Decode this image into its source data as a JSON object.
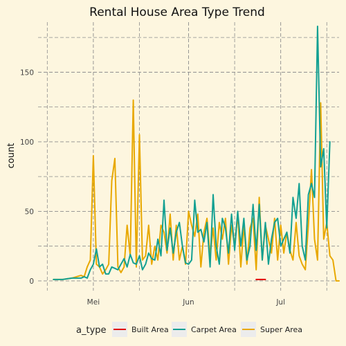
{
  "chart_data": {
    "type": "line",
    "title": "Rental House Area Type Trend",
    "xlabel": "",
    "ylabel": "count",
    "x_tick_labels": [
      "Mei",
      "Jun",
      "Jul"
    ],
    "y_ticks": [
      0,
      50,
      100,
      150
    ],
    "ylim": [
      -7,
      186
    ],
    "xlim": [
      "2022-04-13",
      "2022-07-20"
    ],
    "grid": true,
    "legend": {
      "title": "a_type",
      "position": "bottom"
    },
    "series": [
      {
        "name": "Built Area",
        "color": "#E00000",
        "x": [
          "2022-06-23",
          "2022-06-24",
          "2022-06-25",
          "2022-06-26"
        ],
        "y": [
          1,
          1,
          1,
          1
        ]
      },
      {
        "name": "Carpet Area",
        "color": "#12A092",
        "x": [
          "2022-04-18",
          "2022-04-21",
          "2022-04-24",
          "2022-04-27",
          "2022-04-28",
          "2022-04-29",
          "2022-04-30",
          "2022-05-01",
          "2022-05-02",
          "2022-05-03",
          "2022-05-04",
          "2022-05-05",
          "2022-05-06",
          "2022-05-07",
          "2022-05-08",
          "2022-05-09",
          "2022-05-10",
          "2022-05-11",
          "2022-05-12",
          "2022-05-13",
          "2022-05-14",
          "2022-05-15",
          "2022-05-16",
          "2022-05-17",
          "2022-05-18",
          "2022-05-19",
          "2022-05-20",
          "2022-05-21",
          "2022-05-22",
          "2022-05-23",
          "2022-05-24",
          "2022-05-25",
          "2022-05-26",
          "2022-05-27",
          "2022-05-28",
          "2022-05-29",
          "2022-05-30",
          "2022-05-31",
          "2022-06-01",
          "2022-06-02",
          "2022-06-03",
          "2022-06-04",
          "2022-06-05",
          "2022-06-06",
          "2022-06-07",
          "2022-06-08",
          "2022-06-09",
          "2022-06-10",
          "2022-06-11",
          "2022-06-12",
          "2022-06-13",
          "2022-06-14",
          "2022-06-15",
          "2022-06-16",
          "2022-06-17",
          "2022-06-18",
          "2022-06-19",
          "2022-06-20",
          "2022-06-21",
          "2022-06-22",
          "2022-06-23",
          "2022-06-24",
          "2022-06-25",
          "2022-06-26",
          "2022-06-27",
          "2022-06-28",
          "2022-06-29",
          "2022-06-30",
          "2022-07-01",
          "2022-07-02",
          "2022-07-03",
          "2022-07-04",
          "2022-07-05",
          "2022-07-06",
          "2022-07-07",
          "2022-07-08",
          "2022-07-09",
          "2022-07-10",
          "2022-07-11",
          "2022-07-12",
          "2022-07-13",
          "2022-07-14",
          "2022-07-15",
          "2022-07-16",
          "2022-07-17"
        ],
        "y": [
          1,
          1,
          2,
          2,
          3,
          2,
          8,
          12,
          23,
          10,
          12,
          5,
          5,
          10,
          9,
          8,
          12,
          16,
          10,
          19,
          13,
          12,
          18,
          8,
          12,
          20,
          16,
          15,
          30,
          18,
          58,
          22,
          38,
          20,
          35,
          42,
          25,
          13,
          12,
          15,
          58,
          35,
          37,
          28,
          42,
          10,
          62,
          25,
          12,
          45,
          38,
          20,
          48,
          22,
          50,
          25,
          45,
          15,
          25,
          55,
          22,
          55,
          15,
          42,
          12,
          30,
          42,
          45,
          25,
          30,
          35,
          20,
          60,
          45,
          70,
          25,
          15,
          62,
          70,
          60,
          183,
          82,
          95,
          38,
          100
        ]
      },
      {
        "name": "Super Area",
        "color": "#E8A800",
        "x": [
          "2022-04-18",
          "2022-04-21",
          "2022-04-24",
          "2022-04-27",
          "2022-04-28",
          "2022-04-29",
          "2022-04-30",
          "2022-05-01",
          "2022-05-02",
          "2022-05-03",
          "2022-05-04",
          "2022-05-05",
          "2022-05-06",
          "2022-05-07",
          "2022-05-08",
          "2022-05-09",
          "2022-05-10",
          "2022-05-11",
          "2022-05-12",
          "2022-05-13",
          "2022-05-14",
          "2022-05-15",
          "2022-05-16",
          "2022-05-17",
          "2022-05-18",
          "2022-05-19",
          "2022-05-20",
          "2022-05-21",
          "2022-05-22",
          "2022-05-23",
          "2022-05-24",
          "2022-05-25",
          "2022-05-26",
          "2022-05-27",
          "2022-05-28",
          "2022-05-29",
          "2022-05-30",
          "2022-05-31",
          "2022-06-01",
          "2022-06-02",
          "2022-06-03",
          "2022-06-04",
          "2022-06-05",
          "2022-06-06",
          "2022-06-07",
          "2022-06-08",
          "2022-06-09",
          "2022-06-10",
          "2022-06-11",
          "2022-06-12",
          "2022-06-13",
          "2022-06-14",
          "2022-06-15",
          "2022-06-16",
          "2022-06-17",
          "2022-06-18",
          "2022-06-19",
          "2022-06-20",
          "2022-06-21",
          "2022-06-22",
          "2022-06-23",
          "2022-06-24",
          "2022-06-25",
          "2022-06-26",
          "2022-06-27",
          "2022-06-28",
          "2022-06-29",
          "2022-06-30",
          "2022-07-01",
          "2022-07-02",
          "2022-07-03",
          "2022-07-04",
          "2022-07-05",
          "2022-07-06",
          "2022-07-07",
          "2022-07-08",
          "2022-07-09",
          "2022-07-10",
          "2022-07-11",
          "2022-07-12",
          "2022-07-13",
          "2022-07-14",
          "2022-07-15",
          "2022-07-16",
          "2022-07-17",
          "2022-07-18",
          "2022-07-19",
          "2022-07-20"
        ],
        "y": [
          1,
          1,
          2,
          4,
          3,
          10,
          15,
          90,
          12,
          10,
          5,
          8,
          12,
          72,
          88,
          10,
          6,
          10,
          40,
          18,
          130,
          10,
          105,
          15,
          18,
          40,
          12,
          25,
          15,
          40,
          35,
          20,
          48,
          15,
          40,
          15,
          25,
          12,
          50,
          40,
          32,
          48,
          10,
          35,
          45,
          18,
          38,
          15,
          42,
          30,
          45,
          12,
          40,
          25,
          48,
          10,
          40,
          12,
          38,
          45,
          8,
          60,
          15,
          40,
          30,
          20,
          45,
          15,
          40,
          20,
          35,
          22,
          15,
          42,
          18,
          12,
          8,
          40,
          80,
          30,
          15,
          128,
          30,
          42,
          18,
          15,
          0,
          0
        ]
      }
    ]
  }
}
